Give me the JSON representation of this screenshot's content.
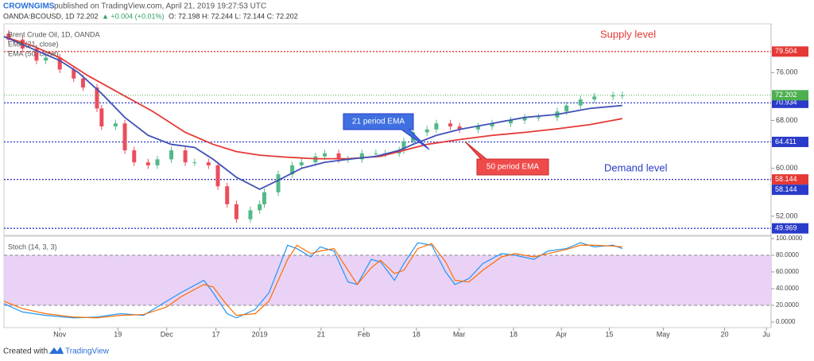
{
  "header": {
    "author": "CROWNGIMS",
    "published": "published on TradingView.com, April 21, 2019 19:27:53 UTC",
    "symbol": "OANDA:BCOUSD, 1D",
    "last": "72.202",
    "change": "▲ +0.004 (+0.01%)",
    "ohlc": "O: 72.198 H: 72.244 L: 72.144 C: 72.202"
  },
  "footer": {
    "created": "Created with",
    "brand": "TradingView"
  },
  "annotations": {
    "supply": "Supply level",
    "demand": "Demand level",
    "ema21": "21 period EMA",
    "ema50": "50 period EMA"
  },
  "chart_data": [
    {
      "type": "candlestick",
      "title": "Brent Crude Oil, 1D, OANDA",
      "xlim": [
        -12,
        153
      ],
      "xticks": [
        {
          "value": 0,
          "label": "Nov"
        },
        {
          "value": 12.5,
          "label": "19"
        },
        {
          "value": 23,
          "label": "Dec"
        },
        {
          "value": 33.6,
          "label": "17"
        },
        {
          "value": 43,
          "label": "2019"
        },
        {
          "value": 56.2,
          "label": "21"
        },
        {
          "value": 65.4,
          "label": "Feb"
        },
        {
          "value": 76.7,
          "label": "18"
        },
        {
          "value": 85.9,
          "label": "Mar"
        },
        {
          "value": 97.6,
          "label": "18"
        },
        {
          "value": 107.9,
          "label": "Apr"
        },
        {
          "value": 118.2,
          "label": "15"
        },
        {
          "value": 129.8,
          "label": "May"
        },
        {
          "value": 143,
          "label": "20"
        },
        {
          "value": 152,
          "label": "Ju"
        }
      ],
      "ylim": [
        48.8,
        84.13
      ],
      "yticks": [
        {
          "value": 76,
          "label": "76.000"
        },
        {
          "value": 68,
          "label": "68.000"
        },
        {
          "value": 60,
          "label": "60.000"
        },
        {
          "value": 52,
          "label": "52.000"
        }
      ],
      "up_color": "#53b987",
      "down_color": "#eb4d5c",
      "candles": {
        "x": [
          -11,
          -8,
          -5,
          -3,
          0,
          3,
          5,
          8,
          9,
          12,
          14,
          16,
          19,
          21,
          24,
          27,
          29,
          32,
          34,
          36,
          38,
          41,
          43,
          44,
          47,
          50,
          52,
          55,
          57,
          60,
          62,
          65,
          68,
          70,
          73,
          74,
          76,
          79,
          81,
          84,
          86,
          90,
          93,
          97,
          100,
          103,
          107,
          109,
          112,
          115,
          119,
          121
        ],
        "open": [
          82.5,
          81.5,
          80,
          78,
          78.5,
          76.5,
          75,
          73.5,
          70,
          67,
          67.5,
          63,
          61,
          60.5,
          61.5,
          63,
          61,
          61,
          60.5,
          57,
          54,
          51.5,
          53,
          54,
          56,
          59,
          60.5,
          61,
          62,
          62.5,
          61.5,
          61.5,
          62.5,
          62.5,
          62.5,
          63,
          64.5,
          66,
          66.5,
          67.5,
          67,
          66.5,
          67,
          67.5,
          68,
          68.5,
          68.5,
          69.5,
          70.5,
          71.5,
          72,
          72.2
        ],
        "high": [
          83.1,
          82.1,
          80.6,
          79.1,
          79.1,
          77.1,
          75.6,
          74.1,
          70.6,
          68.1,
          68.1,
          63.6,
          61.6,
          62.1,
          63.6,
          63.6,
          61.6,
          61.6,
          61.1,
          57.6,
          54.6,
          53.6,
          54.6,
          56.6,
          59.6,
          61.1,
          61.6,
          62.6,
          63.1,
          63.1,
          62.1,
          63.1,
          63.1,
          63.1,
          63.6,
          65.1,
          66.6,
          67.1,
          68.1,
          68.1,
          67.6,
          67.6,
          68.1,
          68.6,
          69.1,
          69.1,
          70.1,
          71.1,
          72.1,
          72.6,
          72.8,
          72.8
        ],
        "low": [
          80.9,
          79.4,
          77.4,
          77.4,
          75.9,
          74.4,
          72.9,
          69.4,
          66.4,
          66.4,
          62.4,
          60.4,
          59.9,
          59.9,
          60.9,
          60.4,
          60.4,
          59.9,
          56.4,
          53.4,
          50.9,
          50.9,
          52.4,
          53.4,
          55.4,
          58.4,
          59.9,
          60.4,
          61.4,
          60.9,
          60.9,
          60.9,
          61.9,
          61.9,
          61.9,
          62.4,
          63.9,
          65.4,
          65.9,
          66.4,
          65.9,
          65.9,
          66.4,
          66.9,
          67.4,
          67.9,
          67.9,
          68.9,
          69.9,
          70.9,
          71.4,
          71.6
        ],
        "close": [
          81.5,
          80,
          78,
          78.5,
          76.5,
          75,
          73.5,
          70,
          67,
          67.5,
          63,
          61,
          60.5,
          61.5,
          63,
          61,
          61,
          60.5,
          57,
          54,
          51.5,
          53,
          54,
          56,
          59,
          60.5,
          61,
          62,
          62.5,
          61.5,
          61.5,
          62.5,
          62.5,
          62.5,
          63,
          64.5,
          66,
          66.5,
          67.5,
          67,
          66.5,
          67,
          67.5,
          68,
          68.5,
          68.5,
          69.5,
          70.5,
          71.5,
          72,
          72.2,
          72.202
        ]
      },
      "last_color": "#4caf50",
      "series": [
        {
          "name": "EMA (50, close)",
          "color": "#e53935",
          "x": [
            -12,
            -6,
            0,
            6,
            13,
            20,
            27,
            33,
            38,
            43,
            48,
            55,
            62,
            69,
            74,
            79,
            86,
            93,
            100,
            107,
            114,
            121
          ],
          "values": [
            82,
            80.5,
            78.5,
            75.5,
            72.5,
            69.5,
            66,
            64,
            62.8,
            62.2,
            61.9,
            61.6,
            61.6,
            62,
            63,
            64,
            64.8,
            65.5,
            66,
            66.6,
            67.3,
            68.3
          ]
        },
        {
          "name": "EMA (21, close)",
          "color": "#3f51b5",
          "x": [
            -12,
            -6,
            0,
            4,
            9,
            14,
            19,
            24,
            29,
            33,
            38,
            43,
            47,
            52,
            57,
            62,
            68,
            73,
            76,
            81,
            86,
            93,
            100,
            107,
            114,
            121
          ],
          "values": [
            82,
            80,
            78,
            76,
            72.5,
            68.5,
            65.5,
            64,
            63.5,
            61.5,
            58.5,
            56.5,
            58,
            60,
            61,
            61.5,
            62,
            63,
            64,
            65.5,
            66.5,
            67.5,
            68.5,
            69,
            70,
            70.5
          ]
        }
      ],
      "levels": [
        {
          "value": 79.504,
          "color": "#e53935"
        },
        {
          "value": 70.934,
          "color": "#2a3bc9"
        },
        {
          "value": 64.411,
          "color": "#2a3bc9"
        },
        {
          "value": 58.144,
          "color": "#e53935"
        },
        {
          "value": 58.144,
          "color": "#2a3bc9"
        },
        {
          "value": 49.969,
          "color": "#2a3bc9"
        }
      ]
    },
    {
      "type": "line",
      "title": "Stoch (14, 3, 3)",
      "xlim": [
        -12,
        153
      ],
      "ylim": [
        -6.67,
        102.86
      ],
      "yticks": [
        {
          "value": 100,
          "label": "100.0000"
        },
        {
          "value": 80,
          "label": "80.0000"
        },
        {
          "value": 60,
          "label": "60.0000"
        },
        {
          "value": 40,
          "label": "40.0000"
        },
        {
          "value": 20,
          "label": "20.0000"
        },
        {
          "value": 0,
          "label": "0.0000"
        }
      ],
      "band": [
        20,
        80
      ],
      "band_color": "#e9d2f6",
      "x": [
        -12,
        -8,
        -3,
        3,
        8,
        13,
        18,
        23,
        26,
        31,
        33,
        36,
        38,
        42,
        45,
        49,
        51,
        54,
        56,
        59,
        62,
        64,
        67,
        69,
        72,
        74,
        77,
        80,
        83,
        85,
        88,
        91,
        95,
        98,
        102,
        105,
        109,
        112,
        115,
        119,
        121
      ],
      "series": [
        {
          "color": "#2196f3",
          "values": [
            22,
            12,
            8,
            5,
            6,
            10,
            8,
            25,
            35,
            50,
            35,
            10,
            5,
            15,
            35,
            92,
            88,
            78,
            90,
            85,
            48,
            45,
            75,
            72,
            50,
            70,
            95,
            92,
            60,
            45,
            52,
            70,
            82,
            80,
            75,
            85,
            88,
            95,
            90,
            92,
            88
          ]
        },
        {
          "color": "#ff6d00",
          "values": [
            25,
            16,
            10,
            6,
            5,
            8,
            9,
            18,
            30,
            45,
            42,
            20,
            8,
            10,
            25,
            75,
            92,
            82,
            85,
            88,
            62,
            45,
            65,
            74,
            58,
            62,
            88,
            94,
            72,
            50,
            48,
            62,
            78,
            82,
            78,
            82,
            87,
            92,
            92,
            91,
            90
          ]
        }
      ]
    }
  ]
}
